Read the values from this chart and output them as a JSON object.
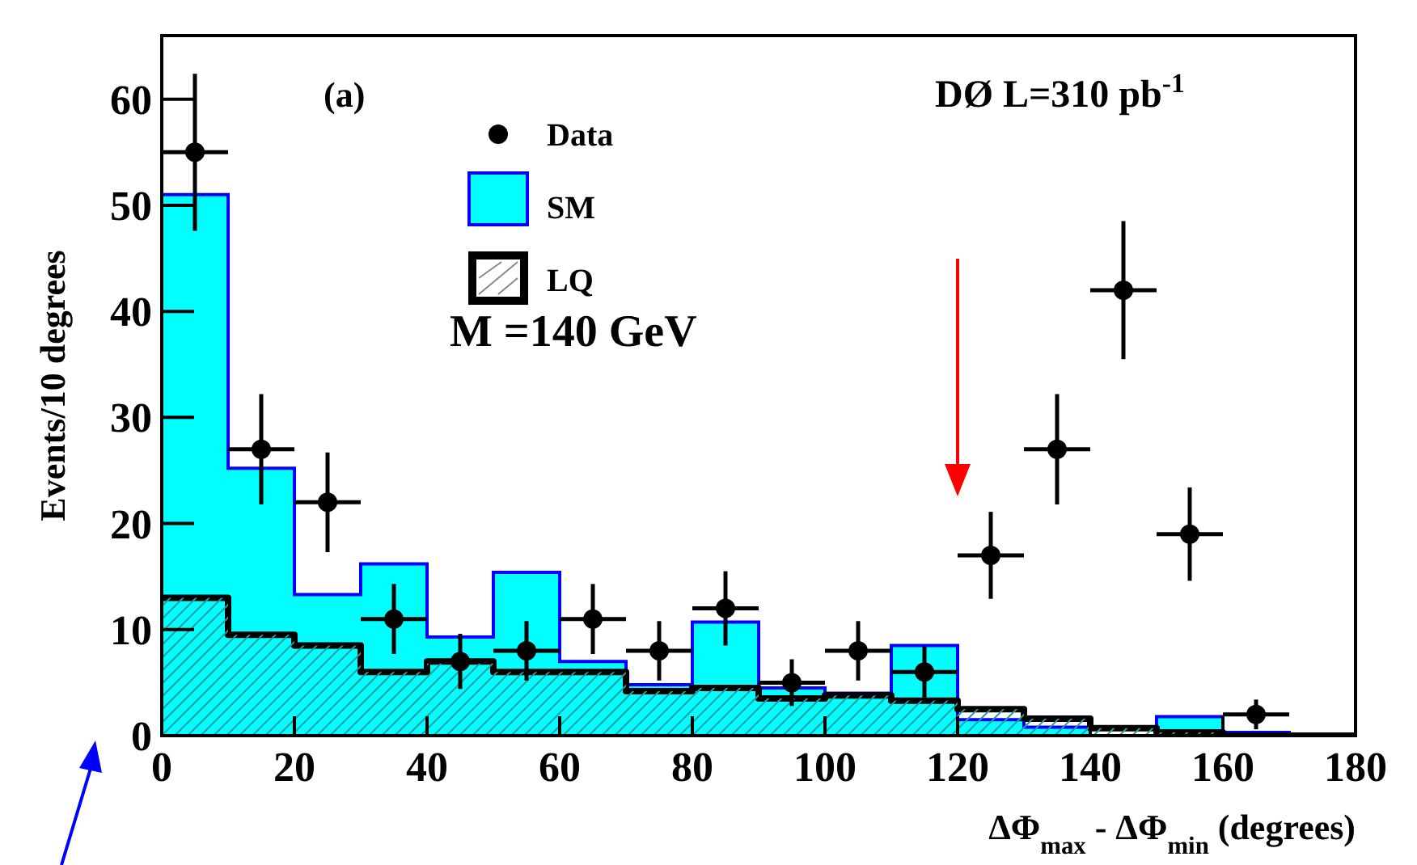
{
  "chart_data": {
    "type": "histogram",
    "xlabel": "ΔΦ$_{max}$ - ΔΦ$_{min}$ (degrees)",
    "ylabel": "Events/10 degrees",
    "bins": [
      0,
      10,
      20,
      30,
      40,
      50,
      60,
      70,
      80,
      90,
      100,
      110,
      120,
      130,
      140,
      150,
      160,
      170,
      180
    ],
    "series": [
      {
        "name": "SM",
        "color": "#00ffff",
        "values": [
          51,
          25.2,
          13.3,
          16.2,
          9.3,
          15.4,
          7,
          4.8,
          10.7,
          4.5,
          4,
          8.5,
          1.5,
          0.8,
          null,
          1.8,
          0.3,
          0
        ]
      },
      {
        "name": "LQ",
        "color": "#000000",
        "values": [
          13,
          9.5,
          8.5,
          6,
          7,
          6,
          6,
          4.2,
          4.5,
          3.5,
          3.8,
          3.3,
          2.5,
          1.6,
          0.7,
          0.3,
          0,
          0
        ]
      },
      {
        "name": "Data",
        "type": "scatter",
        "color": "#000000",
        "x": [
          5,
          15,
          25,
          35,
          45,
          55,
          65,
          75,
          85,
          95,
          105,
          115,
          125,
          135,
          145,
          155,
          165
        ],
        "values": [
          55,
          27,
          22,
          11,
          7,
          8,
          11,
          8,
          12,
          5,
          8,
          6,
          17,
          27,
          42,
          19,
          2
        ],
        "errors": [
          7.4,
          5.2,
          4.7,
          3.3,
          2.6,
          2.8,
          3.3,
          2.8,
          3.5,
          2.2,
          2.8,
          2.4,
          4.1,
          5.2,
          6.5,
          4.4,
          1.4
        ],
        "xerrors": [
          5,
          5,
          5,
          5,
          5,
          5,
          5,
          5,
          5,
          5,
          5,
          5,
          5,
          5,
          5,
          5,
          5
        ]
      }
    ],
    "xlim": [
      0,
      180
    ],
    "ylim": [
      0,
      66
    ],
    "xticks": [
      0,
      20,
      40,
      60,
      80,
      100,
      120,
      140,
      160,
      180
    ],
    "yticks": [
      0,
      10,
      20,
      30,
      40,
      50,
      60
    ],
    "legend": "top",
    "marker": "circle",
    "grid": false,
    "annotations": [
      "(a)",
      "DØ  L=310 pb$^{-1}$",
      "M =140 GeV"
    ]
  }
}
